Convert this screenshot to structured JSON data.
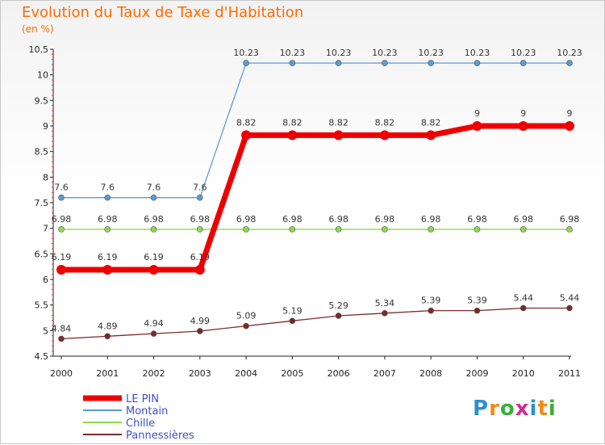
{
  "header": {
    "title": "Evolution du Taux de Taxe d'Habitation",
    "subtitle": "(en %)"
  },
  "logo": {
    "letters": [
      "P",
      "r",
      "o",
      "x",
      "i",
      "t",
      "i"
    ],
    "colors": [
      "#2a8fd6",
      "#f08a1c",
      "#3cae3c",
      "#d02e8e",
      "#2a8fd6",
      "#f08a1c",
      "#3cae3c"
    ]
  },
  "chart_data": {
    "type": "line",
    "title": "Evolution du Taux de Taxe d'Habitation",
    "ylabel": "(en %)",
    "xlabel": "",
    "x": [
      "2000",
      "2001",
      "2002",
      "2003",
      "2004",
      "2005",
      "2006",
      "2007",
      "2008",
      "2009",
      "2010",
      "2011"
    ],
    "ylim": [
      4.5,
      10.5
    ],
    "yticks": [
      "4.5",
      "5",
      "5.5",
      "6",
      "6.5",
      "7",
      "7.5",
      "8",
      "8.5",
      "9",
      "9.5",
      "10",
      "10.5"
    ],
    "grid": false,
    "legend": "bottom-left",
    "series": [
      {
        "name": "Montain",
        "color": "#5b9bd5",
        "values": [
          7.6,
          7.6,
          7.6,
          7.6,
          10.23,
          10.23,
          10.23,
          10.23,
          10.23,
          10.23,
          10.23,
          10.23
        ],
        "labels": [
          "7.6",
          "7.6",
          "7.6",
          "7.6",
          "10.23",
          "10.23",
          "10.23",
          "10.23",
          "10.23",
          "10.23",
          "10.23",
          "10.23"
        ]
      },
      {
        "name": "Chille",
        "color": "#8ed84e",
        "values": [
          6.98,
          6.98,
          6.98,
          6.98,
          6.98,
          6.98,
          6.98,
          6.98,
          6.98,
          6.98,
          6.98,
          6.98
        ],
        "labels": [
          "6.98",
          "6.98",
          "6.98",
          "6.98",
          "6.98",
          "6.98",
          "6.98",
          "6.98",
          "6.98",
          "6.98",
          "6.98",
          "6.98"
        ]
      },
      {
        "name": "Pannessières",
        "color": "#7a2a2a",
        "values": [
          4.84,
          4.89,
          4.94,
          4.99,
          5.09,
          5.19,
          5.29,
          5.34,
          5.39,
          5.39,
          5.44,
          5.44
        ],
        "labels": [
          "4.84",
          "4.89",
          "4.94",
          "4.99",
          "5.09",
          "5.19",
          "5.29",
          "5.34",
          "5.39",
          "5.39",
          "5.44",
          "5.44"
        ]
      },
      {
        "name": "LE PIN",
        "color": "#ee0000",
        "highlight": true,
        "values": [
          6.19,
          6.19,
          6.19,
          6.19,
          8.82,
          8.82,
          8.82,
          8.82,
          8.82,
          9,
          9,
          9
        ],
        "labels": [
          "6.19",
          "6.19",
          "6.19",
          "6.19",
          "8.82",
          "8.82",
          "8.82",
          "8.82",
          "8.82",
          "9",
          "9",
          "9"
        ]
      }
    ],
    "legend_order": [
      "LE PIN",
      "Montain",
      "Chille",
      "Pannessières"
    ]
  }
}
